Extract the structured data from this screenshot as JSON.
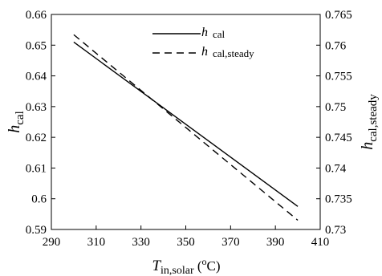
{
  "chart_data": {
    "type": "line",
    "xlabel": {
      "main": "T",
      "sub": "in,solar",
      "unit_open": " (",
      "unit_sup": "o",
      "unit_close": "C)"
    },
    "ylabel_left": {
      "main": "h",
      "sub": "cal"
    },
    "ylabel_right": {
      "main": "h",
      "sub": "cal,steady"
    },
    "xlim": [
      290,
      410
    ],
    "xticks": [
      290,
      310,
      330,
      350,
      370,
      390,
      410
    ],
    "ylim_left": [
      0.59,
      0.66
    ],
    "yticks_left": [
      0.59,
      0.6,
      0.61,
      0.62,
      0.63,
      0.64,
      0.65,
      0.66
    ],
    "ylim_right": [
      0.73,
      0.765
    ],
    "yticks_right": [
      0.73,
      0.735,
      0.74,
      0.745,
      0.75,
      0.755,
      0.76,
      0.765
    ],
    "legend_position": "top-right",
    "series": [
      {
        "name_main": "h",
        "name_sub": "cal",
        "axis": "left",
        "style": "solid",
        "x": [
          300,
          400
        ],
        "y": [
          0.651,
          0.5975
        ]
      },
      {
        "name_main": "h",
        "name_sub": "cal,steady",
        "axis": "right",
        "style": "dashed",
        "x": [
          300,
          400
        ],
        "y": [
          0.7617,
          0.7315
        ]
      }
    ]
  }
}
